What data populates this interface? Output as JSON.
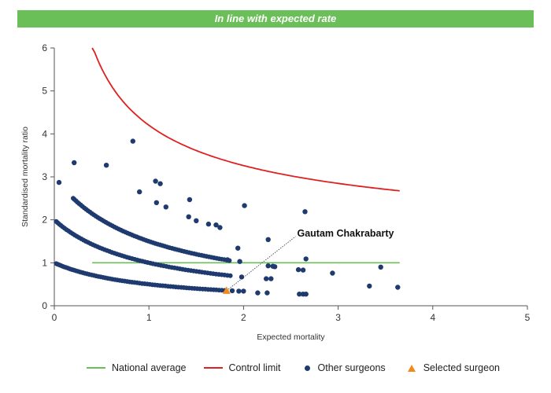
{
  "banner": {
    "text": "In line with expected rate",
    "color": "#6bbf59"
  },
  "chart_data": {
    "type": "scatter",
    "title": "",
    "xlabel": "Expected mortality",
    "ylabel": "Standardised mortality ratio",
    "xlim": [
      0,
      5
    ],
    "ylim": [
      0,
      6
    ],
    "xticks": [
      "0",
      "1",
      "2",
      "3",
      "4",
      "5"
    ],
    "yticks": [
      "0",
      "1",
      "2",
      "3",
      "4",
      "5",
      "6"
    ],
    "grid": false,
    "legend_position": "bottom",
    "national_average": {
      "name": "National average",
      "color": "#6bbf59",
      "y": 1,
      "x_range": [
        0.4,
        3.65
      ]
    },
    "control_limit": {
      "name": "Control limit",
      "color": "#e02020",
      "x_range": [
        0.4,
        3.65
      ],
      "formula": "y = 1 + 3.2 / sqrt(x)"
    },
    "other_surgeons": {
      "name": "Other surgeons",
      "color": "#1e3a6e",
      "bands": [
        {
          "numerator": 1,
          "x_range": [
            0.02,
            1.8
          ]
        },
        {
          "numerator": 2,
          "x_range": [
            0.02,
            1.86
          ]
        },
        {
          "numerator": 3,
          "x_range": [
            0.2,
            1.85
          ]
        }
      ],
      "points": [
        [
          0.05,
          2.87
        ],
        [
          0.21,
          3.33
        ],
        [
          0.55,
          3.27
        ],
        [
          0.83,
          3.83
        ],
        [
          0.9,
          2.65
        ],
        [
          1.07,
          2.9
        ],
        [
          1.12,
          2.84
        ],
        [
          1.08,
          2.4
        ],
        [
          1.18,
          2.3
        ],
        [
          1.43,
          2.47
        ],
        [
          1.42,
          2.07
        ],
        [
          1.5,
          1.98
        ],
        [
          1.63,
          1.9
        ],
        [
          1.71,
          1.88
        ],
        [
          1.75,
          1.82
        ],
        [
          2.01,
          2.33
        ],
        [
          2.26,
          1.54
        ],
        [
          2.65,
          2.19
        ],
        [
          2.66,
          1.09
        ],
        [
          2.26,
          0.93
        ],
        [
          2.31,
          0.92
        ],
        [
          2.33,
          0.91
        ],
        [
          2.58,
          0.84
        ],
        [
          2.63,
          0.83
        ],
        [
          2.94,
          0.76
        ],
        [
          3.45,
          0.9
        ],
        [
          2.24,
          0.63
        ],
        [
          2.29,
          0.63
        ],
        [
          3.33,
          0.46
        ],
        [
          3.63,
          0.43
        ],
        [
          1.98,
          0.67
        ],
        [
          2.0,
          0.34
        ],
        [
          2.15,
          0.3
        ],
        [
          2.25,
          0.3
        ],
        [
          2.59,
          0.27
        ],
        [
          2.63,
          0.27
        ],
        [
          2.66,
          0.27
        ],
        [
          1.95,
          0.34
        ],
        [
          1.88,
          0.35
        ],
        [
          1.83,
          1.07
        ],
        [
          1.96,
          1.03
        ],
        [
          1.94,
          1.34
        ]
      ]
    },
    "selected_surgeon": {
      "name": "Selected surgeon",
      "label": "Gautam Chakrabarty",
      "x": 1.82,
      "y": 0.35,
      "color": "#f08a1c",
      "label_anchor": [
        2.55,
        1.65
      ]
    }
  },
  "legend": [
    {
      "label": "National average",
      "kind": "line",
      "color": "#6bbf59"
    },
    {
      "label": "Control limit",
      "kind": "line",
      "color": "#e02020"
    },
    {
      "label": "Other surgeons",
      "kind": "dot",
      "color": "#1e3a6e"
    },
    {
      "label": "Selected surgeon",
      "kind": "triangle",
      "color": "#f08a1c"
    }
  ]
}
